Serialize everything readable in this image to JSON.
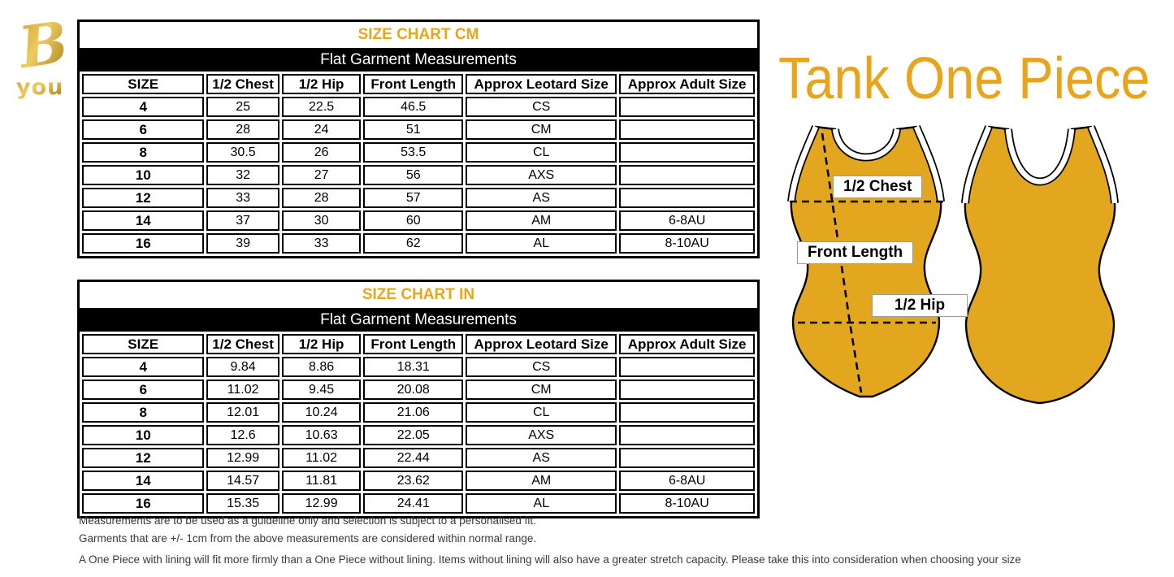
{
  "header": {
    "title": "Tank One Piece",
    "accent_gold": "#E9A41C"
  },
  "logo": {
    "mark": "B",
    "wordmark": "you",
    "gold_dark": "#9E7612",
    "gold_light": "#EDCB5E"
  },
  "tables": {
    "cm": {
      "title": "SIZE CHART CM",
      "subtitle": "Flat Garment Measurements",
      "columns": [
        "SIZE",
        "1/2 Chest",
        "1/2 Hip",
        "Front Length",
        "Approx Leotard Size",
        "Approx Adult Size"
      ],
      "rows": [
        [
          "4",
          "25",
          "22.5",
          "46.5",
          "CS",
          ""
        ],
        [
          "6",
          "28",
          "24",
          "51",
          "CM",
          ""
        ],
        [
          "8",
          "30.5",
          "26",
          "53.5",
          "CL",
          ""
        ],
        [
          "10",
          "32",
          "27",
          "56",
          "AXS",
          ""
        ],
        [
          "12",
          "33",
          "28",
          "57",
          "AS",
          ""
        ],
        [
          "14",
          "37",
          "30",
          "60",
          "AM",
          "6-8AU"
        ],
        [
          "16",
          "39",
          "33",
          "62",
          "AL",
          "8-10AU"
        ]
      ]
    },
    "in": {
      "title": "SIZE CHART IN",
      "subtitle": "Flat Garment Measurements",
      "columns": [
        "SIZE",
        "1/2 Chest",
        "1/2 Hip",
        "Front Length",
        "Approx Leotard Size",
        "Approx Adult Size"
      ],
      "rows": [
        [
          "4",
          "9.84",
          "8.86",
          "18.31",
          "CS",
          ""
        ],
        [
          "6",
          "11.02",
          "9.45",
          "20.08",
          "CM",
          ""
        ],
        [
          "8",
          "12.01",
          "10.24",
          "21.06",
          "CL",
          ""
        ],
        [
          "10",
          "12.6",
          "10.63",
          "22.05",
          "AXS",
          ""
        ],
        [
          "12",
          "12.99",
          "11.02",
          "22.44",
          "AS",
          ""
        ],
        [
          "14",
          "14.57",
          "11.81",
          "23.62",
          "AM",
          "6-8AU"
        ],
        [
          "16",
          "15.35",
          "12.99",
          "24.41",
          "AL",
          "8-10AU"
        ]
      ]
    }
  },
  "diagram": {
    "garment_color": "#E2A71E",
    "labels": {
      "chest": "1/2 Chest",
      "front_length": "Front Length",
      "hip": "1/2 Hip"
    }
  },
  "notes": [
    "Measurements are to be used as a guideline only and selection is subject to a personalised fit.",
    "Garments that are  +/-  1cm from the above measurements are considered within normal range.",
    "A One Piece with lining will fit more firmly than a One Piece without lining.  Items without lining will also have a greater stretch capacity. Please take this into consideration when choosing your size"
  ]
}
